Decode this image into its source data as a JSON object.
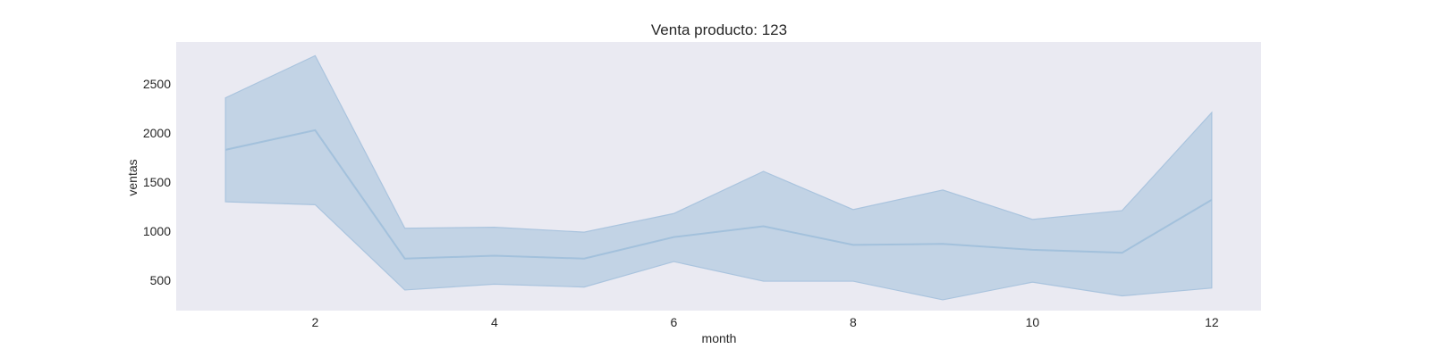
{
  "chart_data": {
    "type": "line",
    "title": "Venta producto: 123",
    "xlabel": "month",
    "ylabel": "ventas",
    "x": [
      1,
      2,
      3,
      4,
      5,
      6,
      7,
      8,
      9,
      10,
      11,
      12
    ],
    "series": [
      {
        "values": [
          1830,
          2030,
          720,
          750,
          720,
          940,
          1050,
          860,
          870,
          810,
          780,
          1320
        ],
        "ci_upper": [
          2360,
          2790,
          1030,
          1040,
          990,
          1180,
          1610,
          1220,
          1420,
          1120,
          1210,
          2210
        ],
        "ci_lower": [
          1300,
          1270,
          400,
          460,
          430,
          690,
          490,
          490,
          300,
          480,
          340,
          420
        ]
      }
    ],
    "xlim": [
      0.45,
      12.55
    ],
    "ylim": [
      190,
      2930
    ],
    "xticks": [
      2,
      4,
      6,
      8,
      10,
      12
    ],
    "yticks": [
      500,
      1000,
      1500,
      2000,
      2500
    ],
    "grid": false,
    "colors": {
      "background": "#eaeaf2",
      "line": "#a3c1dc",
      "band": "#c2d3e5",
      "band_edge": "#aac4de"
    }
  }
}
